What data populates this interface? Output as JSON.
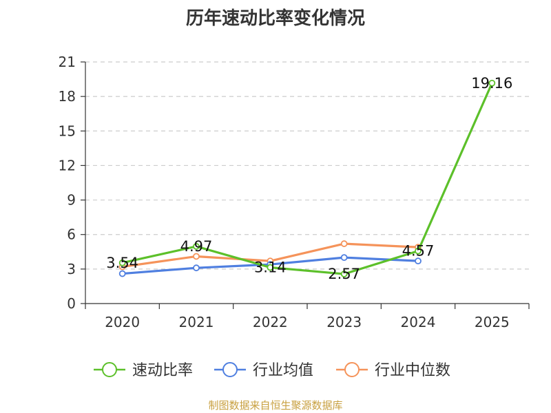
{
  "chart_data": {
    "type": "line",
    "title": "历年速动比率变化情况",
    "categories": [
      "2020",
      "2021",
      "2022",
      "2023",
      "2024",
      "2025"
    ],
    "ylim": [
      0,
      21
    ],
    "yticks": [
      0,
      3,
      6,
      9,
      12,
      15,
      18,
      21
    ],
    "grid": true,
    "legend_position": "bottom",
    "series": [
      {
        "name": "速动比率",
        "color": "#5cc02a",
        "values": [
          3.54,
          4.97,
          3.14,
          2.57,
          4.57,
          19.16
        ],
        "labels": [
          "3.54",
          "4.97",
          "3.14",
          "2.57",
          "4.57",
          "19.16"
        ]
      },
      {
        "name": "行业均值",
        "color": "#4f7fe0",
        "values": [
          2.6,
          3.1,
          3.4,
          4.0,
          3.7,
          null
        ]
      },
      {
        "name": "行业中位数",
        "color": "#f5935a",
        "values": [
          3.2,
          4.1,
          3.7,
          5.2,
          4.9,
          null
        ]
      }
    ]
  },
  "source": "制图数据来自恒生聚源数据库"
}
